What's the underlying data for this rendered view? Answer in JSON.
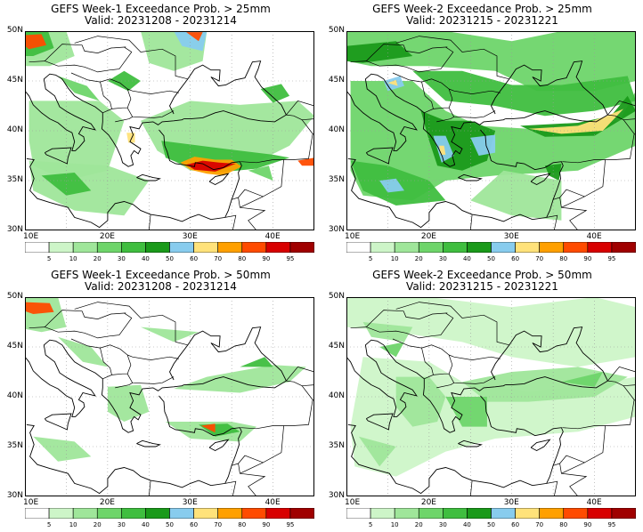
{
  "colorbar": {
    "labels": [
      "5",
      "10",
      "20",
      "30",
      "40",
      "50",
      "60",
      "70",
      "80",
      "90",
      "95"
    ],
    "colors": [
      "#ffffff",
      "#cdf5c8",
      "#9fe69a",
      "#6ed56a",
      "#3fbe3f",
      "#1a9a1a",
      "#88ccee",
      "#ffe27a",
      "#ffa000",
      "#ff4b00",
      "#d80000",
      "#a00000"
    ]
  },
  "axes": {
    "y_ticks": [
      "50N",
      "45N",
      "40N",
      "35N",
      "30N"
    ],
    "x_ticks": [
      "10E",
      "20E",
      "30E",
      "40E"
    ]
  },
  "panels": [
    {
      "title_line1": "GEFS Week-1 Exceedance Prob. > 25mm",
      "title_line2": "Valid: 20231208 - 20231214",
      "threshold_mm": 25,
      "week": 1
    },
    {
      "title_line1": "GEFS Week-2 Exceedance Prob. > 25mm",
      "title_line2": "Valid: 20231215 - 20231221",
      "threshold_mm": 25,
      "week": 2
    },
    {
      "title_line1": "GEFS Week-1 Exceedance Prob. > 50mm",
      "title_line2": "Valid: 20231208 - 20231214",
      "threshold_mm": 50,
      "week": 1
    },
    {
      "title_line1": "GEFS Week-2 Exceedance Prob. > 50mm",
      "title_line2": "Valid: 20231215 - 20231221",
      "threshold_mm": 50,
      "week": 2
    }
  ]
}
